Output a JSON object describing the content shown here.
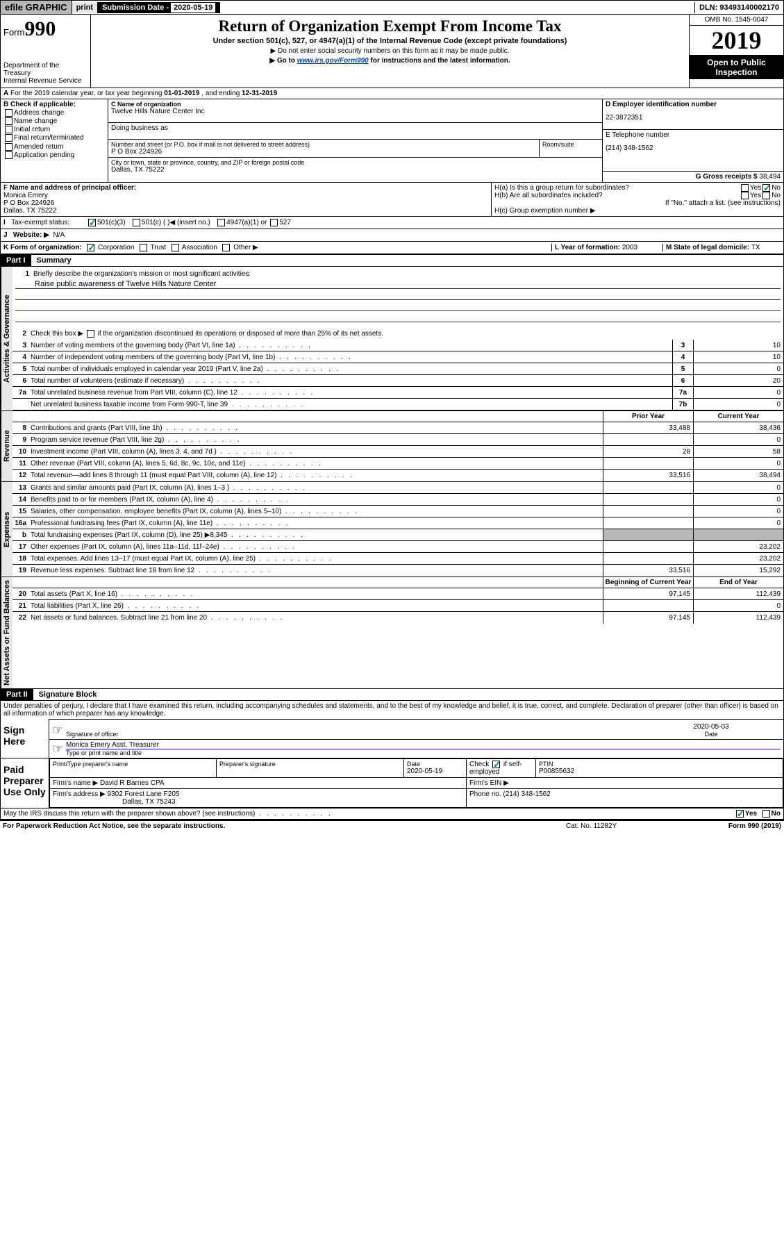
{
  "topbar": {
    "efile": "efile GRAPHIC",
    "print": "print",
    "sub_label": "Submission Date - ",
    "sub_date": "2020-05-19",
    "dln": "DLN: 93493140002170"
  },
  "header": {
    "form_prefix": "Form",
    "form_num": "990",
    "dept": "Department of the Treasury\nInternal Revenue Service",
    "title": "Return of Organization Exempt From Income Tax",
    "sub1": "Under section 501(c), 527, or 4947(a)(1) of the Internal Revenue Code (except private foundations)",
    "sub2_arrow": "▶",
    "sub2": "Do not enter social security numbers on this form as it may be made public.",
    "sub3_arrow": "▶",
    "sub3_pre": "Go to ",
    "sub3_link": "www.irs.gov/Form990",
    "sub3_post": " for instructions and the latest information.",
    "omb": "OMB No. 1545-0047",
    "year": "2019",
    "public": "Open to Public Inspection"
  },
  "row_a": {
    "text": "For the 2019 calendar year, or tax year beginning ",
    "begin": "01-01-2019",
    "mid": " , and ending ",
    "end": "12-31-2019"
  },
  "col_b": {
    "label": "B Check if applicable:",
    "opts": [
      "Address change",
      "Name change",
      "Initial return",
      "Final return/terminated",
      "Amended return",
      "Application pending"
    ]
  },
  "org": {
    "c_label": "C Name of organization",
    "name": "Twelve Hills Nature Center Inc",
    "dba_label": "Doing business as",
    "dba": "",
    "addr_label": "Number and street (or P.O. box if mail is not delivered to street address)",
    "room_label": "Room/suite",
    "addr": "P O Box 224926",
    "city_label": "City or town, state or province, country, and ZIP or foreign postal code",
    "city": "Dallas, TX  75222"
  },
  "right": {
    "d_label": "D Employer identification number",
    "ein": "22-3872351",
    "e_label": "E Telephone number",
    "phone": "(214) 348-1562",
    "g_label": "G Gross receipts $ ",
    "gross": "38,494"
  },
  "officer": {
    "f_label": "F  Name and address of principal officer:",
    "name": "Monica Emery",
    "addr1": "P O Box 224926",
    "addr2": "Dallas, TX  75222",
    "h_a": "H(a)  Is this a group return for subordinates?",
    "h_b": "H(b)  Are all subordinates included?",
    "h_note": "If \"No,\" attach a list. (see instructions)",
    "h_c": "H(c)  Group exemption number ▶",
    "yes": "Yes",
    "no": "No"
  },
  "tax_status": {
    "i_label": "Tax-exempt status:",
    "opt1": "501(c)(3)",
    "opt2": "501(c) (  )",
    "opt2_hint": "◀ (insert no.)",
    "opt3": "4947(a)(1) or",
    "opt4": "527"
  },
  "website": {
    "j_label": "Website: ▶",
    "value": "N/A"
  },
  "korg": {
    "k_label": "K Form of organization:",
    "opts": [
      "Corporation",
      "Trust",
      "Association",
      "Other ▶"
    ],
    "l_label": "L Year of formation: ",
    "l_val": "2003",
    "m_label": "M State of legal domicile: ",
    "m_val": "TX"
  },
  "part1": {
    "header": "Part I",
    "title": "Summary",
    "q1": "Briefly describe the organization's mission or most significant activities:",
    "mission": "Raise public awareness of Twelve Hills Nature Center",
    "q2": "Check this box ▶       if the organization discontinued its operations or disposed of more than 25% of its net assets.",
    "lines": [
      {
        "n": "3",
        "t": "Number of voting members of the governing body (Part VI, line 1a)",
        "box": "3",
        "v": "10"
      },
      {
        "n": "4",
        "t": "Number of independent voting members of the governing body (Part VI, line 1b)",
        "box": "4",
        "v": "10"
      },
      {
        "n": "5",
        "t": "Total number of individuals employed in calendar year 2019 (Part V, line 2a)",
        "box": "5",
        "v": "0"
      },
      {
        "n": "6",
        "t": "Total number of volunteers (estimate if necessary)",
        "box": "6",
        "v": "20"
      },
      {
        "n": "7a",
        "t": "Total unrelated business revenue from Part VIII, column (C), line 12",
        "box": "7a",
        "v": "0"
      },
      {
        "n": "",
        "t": "Net unrelated business taxable income from Form 990-T, line 39",
        "box": "7b",
        "v": "0"
      }
    ],
    "prior_hdr": "Prior Year",
    "curr_hdr": "Current Year",
    "rev": [
      {
        "n": "8",
        "t": "Contributions and grants (Part VIII, line 1h)",
        "p": "33,488",
        "c": "38,436"
      },
      {
        "n": "9",
        "t": "Program service revenue (Part VIII, line 2g)",
        "p": "",
        "c": "0"
      },
      {
        "n": "10",
        "t": "Investment income (Part VIII, column (A), lines 3, 4, and 7d )",
        "p": "28",
        "c": "58"
      },
      {
        "n": "11",
        "t": "Other revenue (Part VIII, column (A), lines 5, 6d, 8c, 9c, 10c, and 11e)",
        "p": "",
        "c": "0"
      },
      {
        "n": "12",
        "t": "Total revenue—add lines 8 through 11 (must equal Part VIII, column (A), line 12)",
        "p": "33,516",
        "c": "38,494"
      }
    ],
    "exp": [
      {
        "n": "13",
        "t": "Grants and similar amounts paid (Part IX, column (A), lines 1–3 )",
        "p": "",
        "c": "0"
      },
      {
        "n": "14",
        "t": "Benefits paid to or for members (Part IX, column (A), line 4)",
        "p": "",
        "c": "0"
      },
      {
        "n": "15",
        "t": "Salaries, other compensation, employee benefits (Part IX, column (A), lines 5–10)",
        "p": "",
        "c": "0"
      },
      {
        "n": "16a",
        "t": "Professional fundraising fees (Part IX, column (A), line 11e)",
        "p": "",
        "c": "0"
      },
      {
        "n": "b",
        "t": "Total fundraising expenses (Part IX, column (D), line 25) ▶8,345",
        "p": "shaded",
        "c": "shaded"
      },
      {
        "n": "17",
        "t": "Other expenses (Part IX, column (A), lines 11a–11d, 11f–24e)",
        "p": "",
        "c": "23,202"
      },
      {
        "n": "18",
        "t": "Total expenses. Add lines 13–17 (must equal Part IX, column (A), line 25)",
        "p": "",
        "c": "23,202"
      },
      {
        "n": "19",
        "t": "Revenue less expenses. Subtract line 18 from line 12",
        "p": "33,516",
        "c": "15,292"
      }
    ],
    "begin_hdr": "Beginning of Current Year",
    "end_hdr": "End of Year",
    "net": [
      {
        "n": "20",
        "t": "Total assets (Part X, line 16)",
        "p": "97,145",
        "c": "112,439"
      },
      {
        "n": "21",
        "t": "Total liabilities (Part X, line 26)",
        "p": "",
        "c": "0"
      },
      {
        "n": "22",
        "t": "Net assets or fund balances. Subtract line 21 from line 20",
        "p": "97,145",
        "c": "112,439"
      }
    ]
  },
  "labels": {
    "gov": "Activities & Governance",
    "rev": "Revenue",
    "exp": "Expenses",
    "net": "Net Assets or Fund Balances"
  },
  "part2": {
    "header": "Part II",
    "title": "Signature Block",
    "decl": "Under penalties of perjury, I declare that I have examined this return, including accompanying schedules and statements, and to the best of my knowledge and belief, it is true, correct, and complete. Declaration of preparer (other than officer) is based on all information of which preparer has any knowledge.",
    "sign_here": "Sign Here",
    "sig_officer": "Signature of officer",
    "sig_date": "2020-05-03",
    "date_label": "Date",
    "printed_name": "Monica Emery  Asst. Treasurer",
    "printed_label": "Type or print name and title",
    "paid": "Paid Preparer Use Only",
    "prep_name_label": "Print/Type preparer's name",
    "prep_sig_label": "Preparer's signature",
    "prep_date_label": "Date",
    "prep_date": "2020-05-19",
    "check_label": "Check         if self-employed",
    "ptin_label": "PTIN",
    "ptin": "P00855632",
    "firm_name_label": "Firm's name      ▶",
    "firm_name": "David R Barnes CPA",
    "firm_ein_label": "Firm's EIN ▶",
    "firm_addr_label": "Firm's address ▶",
    "firm_addr1": "9302 Forest Lane F205",
    "firm_addr2": "Dallas, TX  75243",
    "firm_phone_label": "Phone no. ",
    "firm_phone": "(214) 348-1562",
    "discuss": "May the IRS discuss this return with the preparer shown above? (see instructions)",
    "paperwork": "For Paperwork Reduction Act Notice, see the separate instructions.",
    "cat": "Cat. No. 11282Y",
    "form_footer": "Form 990 (2019)"
  }
}
